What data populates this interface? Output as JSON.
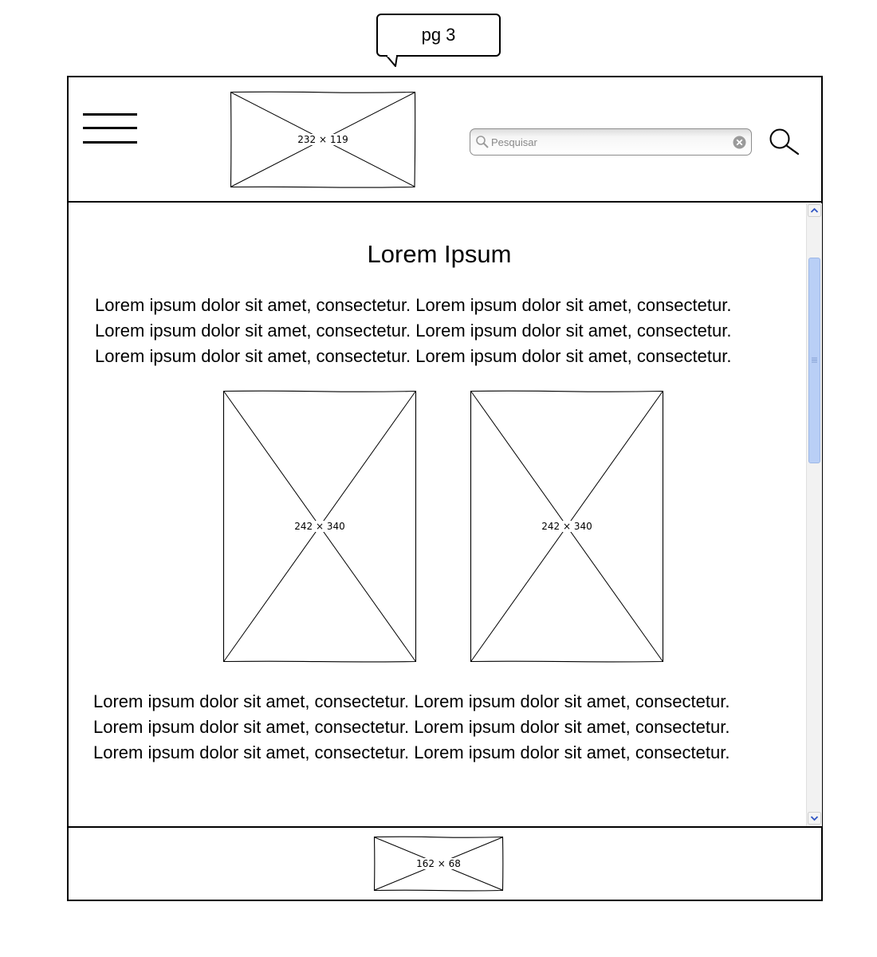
{
  "callout": {
    "text": "pg 3"
  },
  "header": {
    "menu_icon": "hamburger-menu-icon",
    "logo_placeholder": "232 × 119",
    "search": {
      "placeholder": "Pesquisar",
      "value": ""
    },
    "search_button_icon": "magnifier-icon"
  },
  "main": {
    "title": "Lorem Ipsum",
    "paragraph_top": [
      "Lorem ipsum dolor sit amet, consectetur. Lorem ipsum dolor sit amet, consectetur.",
      "Lorem ipsum dolor sit amet, consectetur. Lorem ipsum dolor sit amet, consectetur.",
      "Lorem ipsum dolor sit amet, consectetur. Lorem ipsum dolor sit amet, consectetur."
    ],
    "images": [
      {
        "label": "242 × 340"
      },
      {
        "label": "242 × 340"
      }
    ],
    "paragraph_bottom": [
      "Lorem ipsum dolor sit amet, consectetur. Lorem ipsum dolor sit amet, consectetur.",
      "Lorem ipsum dolor sit amet, consectetur. Lorem ipsum dolor sit amet, consectetur.",
      "Lorem ipsum dolor sit amet, consectetur. Lorem ipsum dolor sit amet, consectetur."
    ]
  },
  "scrollbar": {
    "thumb_color": "#b9cff6",
    "scroll_position": 0.08
  },
  "footer": {
    "logo_placeholder": "162 × 68"
  }
}
